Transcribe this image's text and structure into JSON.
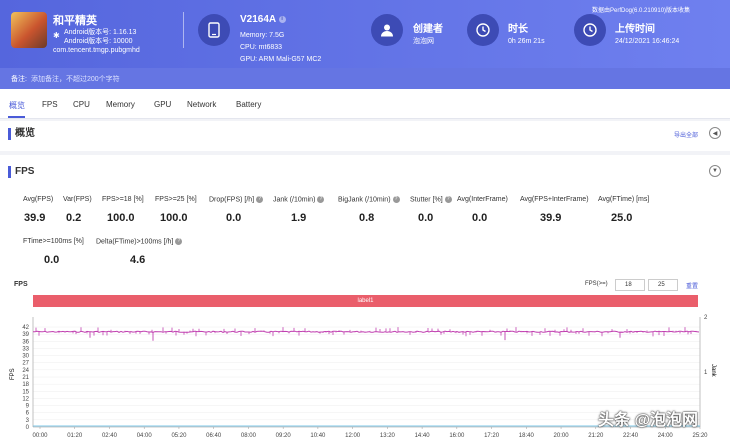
{
  "header": {
    "app_name": "和平精英",
    "android_ver": "Android版本号: 1.16.13",
    "android_code": "Android版本号: 10000",
    "package": "com.tencent.tmgp.pubgmhd",
    "device": {
      "name": "V2164A",
      "memory": "Memory: 7.5G",
      "cpu": "CPU: mt6833",
      "gpu": "GPU: ARM Mali-G57 MC2"
    },
    "creator": {
      "label": "创建者",
      "value": "泡泡网"
    },
    "duration": {
      "label": "时长",
      "value": "0h 26m 21s"
    },
    "upload": {
      "label": "上传时间",
      "value": "24/12/2021 16:46:24"
    },
    "perf_note": "数据由PerfDog(6.0.210910)版本收集",
    "note_label": "备注:",
    "note_placeholder": "添加备注，不超过200个字符"
  },
  "tabs": [
    "概览",
    "FPS",
    "CPU",
    "Memory",
    "GPU",
    "Network",
    "Battery"
  ],
  "overview": {
    "title": "概览",
    "export_label": "导出全部"
  },
  "fps_panel": {
    "title": "FPS",
    "metrics_row1": [
      {
        "label": "Avg(FPS)",
        "value": "39.9",
        "help": false
      },
      {
        "label": "Var(FPS)",
        "value": "0.2",
        "help": false
      },
      {
        "label": "FPS>=18 [%]",
        "value": "100.0",
        "help": false
      },
      {
        "label": "FPS>=25 [%]",
        "value": "100.0",
        "help": false
      },
      {
        "label": "Drop(FPS) [/h]",
        "value": "0.0",
        "help": true
      },
      {
        "label": "Jank (/10min)",
        "value": "1.9",
        "help": true
      },
      {
        "label": "BigJank (/10min)",
        "value": "0.8",
        "help": true
      },
      {
        "label": "Stutter [%]",
        "value": "0.0",
        "help": true
      },
      {
        "label": "Avg(InterFrame)",
        "value": "0.0",
        "help": false
      },
      {
        "label": "Avg(FPS+InterFrame)",
        "value": "39.9",
        "help": false
      },
      {
        "label": "Avg(FTime) [ms]",
        "value": "25.0",
        "help": false
      }
    ],
    "metrics_row2": [
      {
        "label": "FTime>=100ms [%]",
        "value": "0.0",
        "help": false
      },
      {
        "label": "Delta(FTime)>100ms [/h]",
        "value": "4.6",
        "help": true
      }
    ],
    "chart_label": "FPS",
    "fps_threshold_label": "FPS(>=)",
    "fps_thresholds": [
      "18",
      "25"
    ],
    "reset_label": "重置",
    "label_bar": "label1",
    "watermark": "头条 @泡泡网"
  },
  "chart_data": {
    "type": "line",
    "ylabel": "FPS",
    "y2label": "Jank",
    "yticks": [
      0,
      3,
      6,
      9,
      12,
      15,
      18,
      21,
      24,
      27,
      30,
      33,
      36,
      39,
      42
    ],
    "y2ticks": [
      1,
      2
    ],
    "xticks": [
      "00:00",
      "01:20",
      "02:40",
      "04:00",
      "05:20",
      "06:40",
      "08:00",
      "09:20",
      "10:40",
      "12:00",
      "13:20",
      "14:40",
      "16:00",
      "17:20",
      "18:40",
      "20:00",
      "21:20",
      "22:40",
      "24:00",
      "25:20"
    ],
    "series": [
      {
        "name": "FPS",
        "color": "#c040b0",
        "typical": 40,
        "min": 36,
        "max": 42
      },
      {
        "name": "Jank",
        "color": "#7fc8e8",
        "values_note": "jank events near 03:00, 05:30, 19:30"
      }
    ]
  }
}
